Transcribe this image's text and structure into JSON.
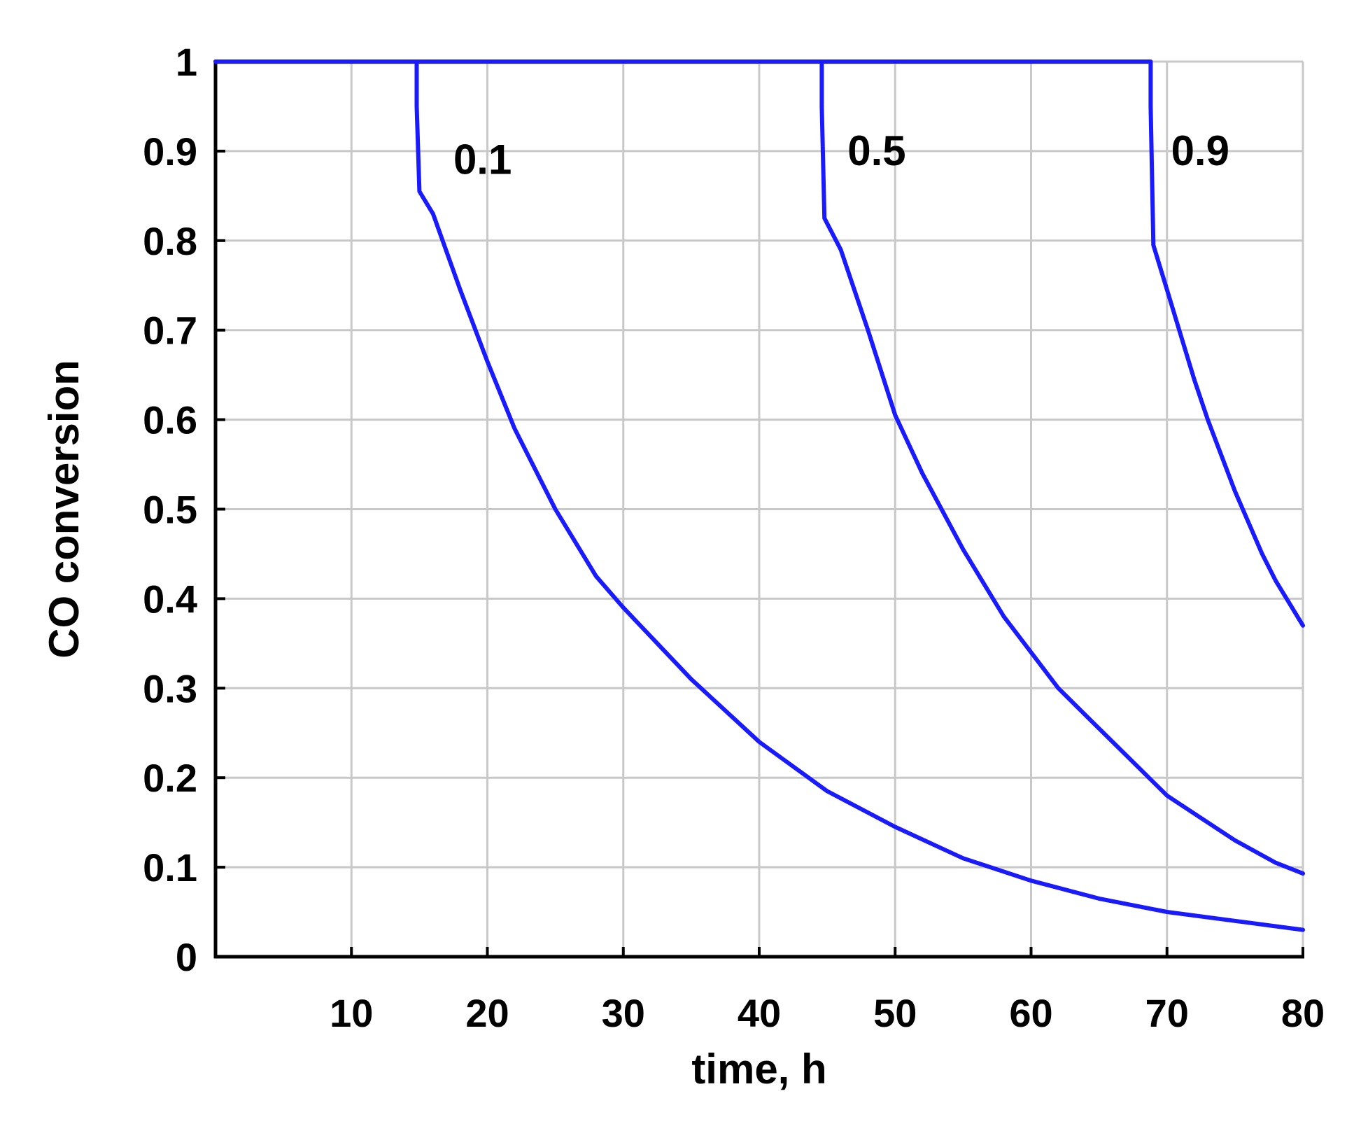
{
  "chart_data": {
    "type": "line",
    "title": "",
    "xlabel": "time, h",
    "ylabel": "CO conversion",
    "xlim": [
      0,
      80
    ],
    "ylim": [
      0,
      1
    ],
    "xticks": [
      10,
      20,
      30,
      40,
      50,
      60,
      70,
      80
    ],
    "xtick_labels": [
      "10",
      "20",
      "30",
      "40",
      "50",
      "60",
      "70",
      "80"
    ],
    "yticks": [
      0,
      0.1,
      0.2,
      0.3,
      0.4,
      0.5,
      0.6,
      0.7,
      0.8,
      0.9,
      1
    ],
    "ytick_labels": [
      "0",
      "0.1",
      "0.2",
      "0.3",
      "0.4",
      "0.5",
      "0.6",
      "0.7",
      "0.8",
      "0.9",
      "1"
    ],
    "grid": true,
    "legend": "none",
    "line_color": "#1a1aff",
    "series": [
      {
        "label": "0.1",
        "label_pos": [
          17.5,
          0.89
        ],
        "x": [
          0,
          14.8,
          14.8,
          15,
          16,
          18,
          20,
          22,
          25,
          28,
          30,
          35,
          40,
          45,
          50,
          55,
          60,
          65,
          70,
          75,
          80
        ],
        "y": [
          1,
          1,
          0.95,
          0.855,
          0.83,
          0.745,
          0.665,
          0.59,
          0.5,
          0.425,
          0.39,
          0.31,
          0.24,
          0.185,
          0.145,
          0.11,
          0.085,
          0.065,
          0.05,
          0.04,
          0.03
        ]
      },
      {
        "label": "0.5",
        "label_pos": [
          46.5,
          0.9
        ],
        "x": [
          0,
          44.6,
          44.6,
          44.8,
          46,
          48,
          50,
          52,
          55,
          58,
          60,
          62,
          65,
          68,
          70,
          72,
          75,
          78,
          80
        ],
        "y": [
          1,
          1,
          0.95,
          0.825,
          0.79,
          0.7,
          0.605,
          0.54,
          0.455,
          0.38,
          0.34,
          0.3,
          0.255,
          0.21,
          0.18,
          0.16,
          0.13,
          0.105,
          0.093
        ]
      },
      {
        "label": "0.9",
        "label_pos": [
          70.3,
          0.9
        ],
        "x": [
          0,
          68.8,
          68.8,
          69,
          70,
          71,
          72,
          73,
          74,
          75,
          76,
          77,
          78,
          79,
          80
        ],
        "y": [
          1,
          1,
          0.95,
          0.795,
          0.745,
          0.695,
          0.645,
          0.6,
          0.56,
          0.52,
          0.485,
          0.45,
          0.42,
          0.395,
          0.37
        ]
      }
    ]
  }
}
